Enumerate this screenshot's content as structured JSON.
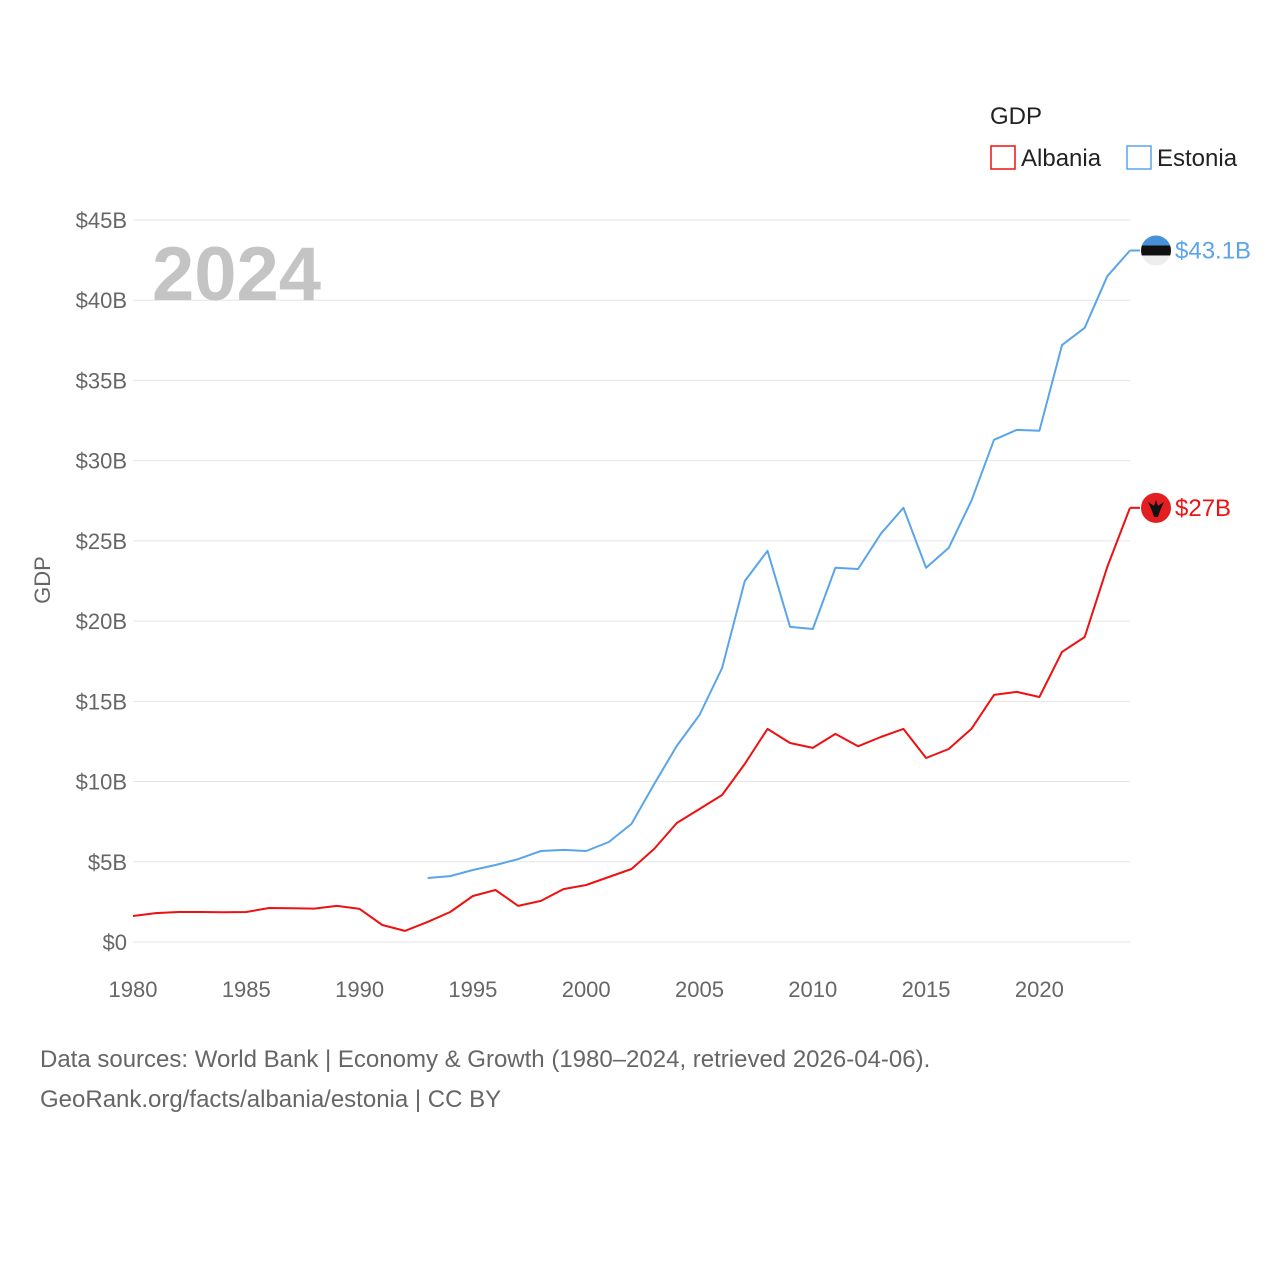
{
  "chart_data": {
    "type": "line",
    "title": "",
    "year_label": "2024",
    "ylabel": "GDP",
    "xlabel": "",
    "ylim": [
      0,
      45
    ],
    "xlim": [
      1980,
      2024
    ],
    "grid": true,
    "legend": {
      "title": "GDP",
      "placement": "top-right"
    },
    "x_ticks": [
      "1980",
      "1985",
      "1990",
      "1995",
      "2000",
      "2005",
      "2010",
      "2015",
      "2020"
    ],
    "x_tick_values": [
      1980,
      1985,
      1990,
      1995,
      2000,
      2005,
      2010,
      2015,
      2020
    ],
    "y_ticks": [
      "$0",
      "$5B",
      "$10B",
      "$15B",
      "$20B",
      "$25B",
      "$30B",
      "$35B",
      "$40B",
      "$45B"
    ],
    "y_tick_values": [
      0,
      5,
      10,
      15,
      20,
      25,
      30,
      35,
      40,
      45
    ],
    "series": [
      {
        "name": "Albania",
        "color": "#ee1111",
        "end_label": "$27B",
        "flag": "albania-flag",
        "x": [
          1980,
          1981,
          1982,
          1983,
          1984,
          1985,
          1986,
          1987,
          1988,
          1989,
          1990,
          1991,
          1992,
          1993,
          1994,
          1995,
          1996,
          1997,
          1998,
          1999,
          2000,
          2001,
          2002,
          2003,
          2004,
          2005,
          2006,
          2007,
          2008,
          2009,
          2010,
          2011,
          2012,
          2013,
          2014,
          2015,
          2016,
          2017,
          2018,
          2019,
          2020,
          2021,
          2022,
          2023,
          2024
        ],
        "values": [
          1.62,
          1.8,
          1.87,
          1.87,
          1.85,
          1.87,
          2.12,
          2.1,
          2.08,
          2.25,
          2.06,
          1.06,
          0.69,
          1.25,
          1.87,
          2.87,
          3.24,
          2.25,
          2.56,
          3.3,
          3.55,
          4.05,
          4.55,
          5.8,
          7.42,
          8.29,
          9.16,
          11.1,
          13.28,
          12.4,
          12.1,
          12.97,
          12.2,
          12.78,
          13.28,
          11.47,
          12.03,
          13.28,
          15.4,
          15.59,
          15.27,
          18.08,
          19.01,
          23.38,
          27.06
        ]
      },
      {
        "name": "Estonia",
        "color": "#5aa5ea",
        "end_label": "$43.1B",
        "flag": "estonia-flag",
        "x": [
          1993,
          1994,
          1995,
          1996,
          1997,
          1998,
          1999,
          2000,
          2001,
          2002,
          2003,
          2004,
          2005,
          2006,
          2007,
          2008,
          2009,
          2010,
          2011,
          2012,
          2013,
          2014,
          2015,
          2016,
          2017,
          2018,
          2019,
          2020,
          2021,
          2022,
          2023,
          2024
        ],
        "values": [
          3.99,
          4.11,
          4.49,
          4.8,
          5.17,
          5.67,
          5.74,
          5.67,
          6.23,
          7.36,
          9.85,
          12.22,
          14.15,
          17.08,
          22.5,
          24.38,
          19.64,
          19.51,
          23.32,
          23.25,
          25.44,
          27.06,
          23.32,
          24.56,
          27.5,
          31.3,
          31.92,
          31.86,
          37.2,
          38.28,
          41.5,
          43.1
        ]
      }
    ]
  },
  "footer": {
    "line1": "Data sources: World Bank | Economy & Growth (1980–2024, retrieved 2026-04-06).",
    "line2": "GeoRank.org/facts/albania/estonia | CC BY"
  }
}
